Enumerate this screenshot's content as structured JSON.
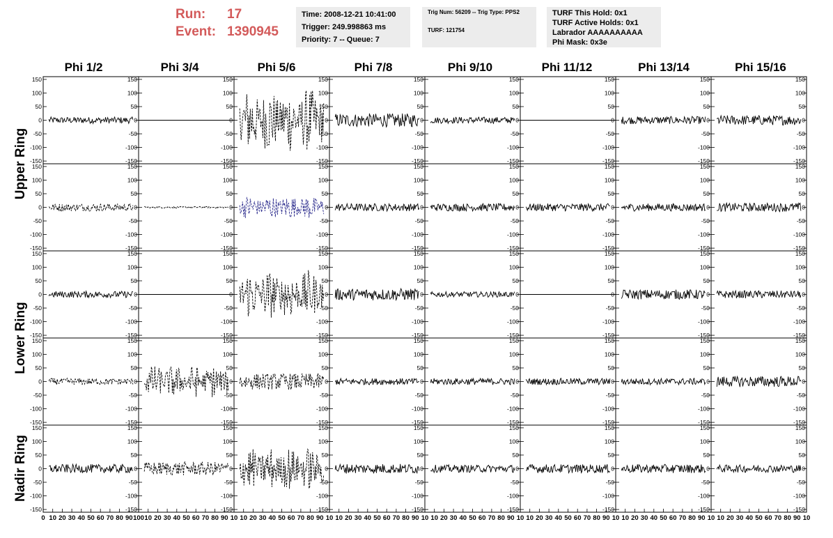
{
  "header": {
    "run_label": "Run:",
    "run_value": "17",
    "event_label": "Event:",
    "event_value": "1390945",
    "time": "Time: 2008-12-21 10:41:00",
    "trigger": "Trigger: 249.998863 ms",
    "priority": "Priority: 7 -- Queue: 7",
    "trig_num": "Trig Num: 56209 -- Trig Type: PPS2",
    "turf": "TURF: 121754",
    "turf_this_hold": "TURF This Hold: 0x1",
    "turf_active_holds": "TURF Active Holds: 0x1",
    "labrador": "Labrador AAAAAAAAAA",
    "phi_mask": "Phi Mask: 0x3e"
  },
  "columns": [
    "Phi 1/2",
    "Phi 3/4",
    "Phi 5/6",
    "Phi 7/8",
    "Phi 9/10",
    "Phi 11/12",
    "Phi 13/14",
    "Phi 15/16"
  ],
  "ring_labels": [
    {
      "text": "Upper Ring",
      "spans_rows": [
        0,
        1
      ]
    },
    {
      "text": "Lower Ring",
      "spans_rows": [
        2,
        3
      ]
    },
    {
      "text": "Nadir Ring",
      "spans_rows": [
        4,
        4
      ]
    }
  ],
  "colors": {
    "waveform": "#000000",
    "highlight_waveform": "#2a2a8c",
    "header_red": "#d35a5a",
    "info_bg": "#ececec"
  },
  "chart_data": {
    "type": "line",
    "description_rows": 5,
    "description_cols": 8,
    "xlim": [
      0,
      100
    ],
    "ylim": [
      -160,
      160
    ],
    "y_ticks": [
      -150,
      -100,
      -50,
      0,
      50,
      100,
      150
    ],
    "x_tick_labels": [
      "0",
      "10",
      "20",
      "30",
      "40",
      "50",
      "60",
      "70",
      "80",
      "90",
      "100"
    ],
    "x_tick_labels_inner": [
      "10",
      "20",
      "30",
      "40",
      "50",
      "60",
      "70",
      "80",
      "90",
      "10"
    ],
    "panels": [
      [
        {
          "amp": 12,
          "style": "solid"
        },
        {
          "amp": 0,
          "style": "flat"
        },
        {
          "amp": 120,
          "style": "dashed"
        },
        {
          "amp": 25,
          "style": "solid"
        },
        {
          "amp": 12,
          "style": "solid"
        },
        {
          "amp": 0,
          "style": "flat"
        },
        {
          "amp": 14,
          "style": "solid"
        },
        {
          "amp": 18,
          "style": "solid"
        }
      ],
      [
        {
          "amp": 14,
          "style": "dashed"
        },
        {
          "amp": 3,
          "style": "dashed"
        },
        {
          "amp": 45,
          "style": "blue-dashed"
        },
        {
          "amp": 14,
          "style": "solid"
        },
        {
          "amp": 14,
          "style": "solid"
        },
        {
          "amp": 14,
          "style": "solid"
        },
        {
          "amp": 14,
          "style": "solid"
        },
        {
          "amp": 16,
          "style": "solid"
        }
      ],
      [
        {
          "amp": 12,
          "style": "solid"
        },
        {
          "amp": 0,
          "style": "flat"
        },
        {
          "amp": 90,
          "style": "dashed"
        },
        {
          "amp": 22,
          "style": "solid"
        },
        {
          "amp": 10,
          "style": "solid"
        },
        {
          "amp": 0,
          "style": "flat"
        },
        {
          "amp": 18,
          "style": "solid"
        },
        {
          "amp": 14,
          "style": "solid"
        }
      ],
      [
        {
          "amp": 12,
          "style": "dashed"
        },
        {
          "amp": 60,
          "style": "dashed"
        },
        {
          "amp": 30,
          "style": "dashed"
        },
        {
          "amp": 12,
          "style": "solid"
        },
        {
          "amp": 12,
          "style": "solid"
        },
        {
          "amp": 12,
          "style": "solid"
        },
        {
          "amp": 12,
          "style": "solid"
        },
        {
          "amp": 20,
          "style": "solid"
        }
      ],
      [
        {
          "amp": 16,
          "style": "solid"
        },
        {
          "amp": 25,
          "style": "dashed"
        },
        {
          "amp": 80,
          "style": "dashed"
        },
        {
          "amp": 18,
          "style": "solid"
        },
        {
          "amp": 14,
          "style": "solid"
        },
        {
          "amp": 16,
          "style": "solid"
        },
        {
          "amp": 16,
          "style": "solid"
        },
        {
          "amp": 14,
          "style": "solid"
        }
      ]
    ]
  }
}
